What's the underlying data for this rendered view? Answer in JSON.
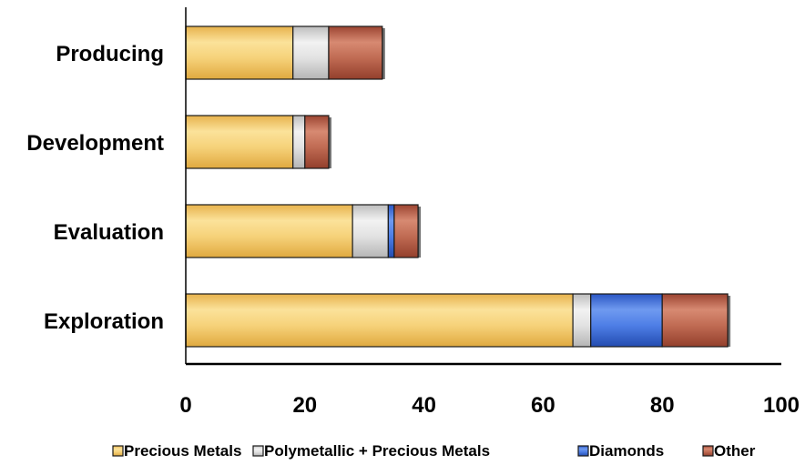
{
  "chart_data": {
    "type": "bar",
    "orientation": "horizontal",
    "stacked": true,
    "categories": [
      "Producing",
      "Development",
      "Evaluation",
      "Exploration"
    ],
    "series": [
      {
        "name": "Precious Metals",
        "values": [
          18,
          18,
          28,
          65
        ],
        "color": "#f2c766"
      },
      {
        "name": "Polymetallic + Precious Metals",
        "values": [
          6,
          2,
          6,
          3
        ],
        "color": "#d9d9d9"
      },
      {
        "name": "Diamonds",
        "values": [
          0,
          0,
          1,
          12
        ],
        "color": "#3f6fd8"
      },
      {
        "name": "Other",
        "values": [
          9,
          4,
          4,
          11
        ],
        "color": "#b8583f"
      }
    ],
    "xlim": [
      0,
      100
    ],
    "xticks": [
      "0",
      "20",
      "40",
      "60",
      "80",
      "100"
    ],
    "grid": false,
    "legend_position": "bottom"
  }
}
